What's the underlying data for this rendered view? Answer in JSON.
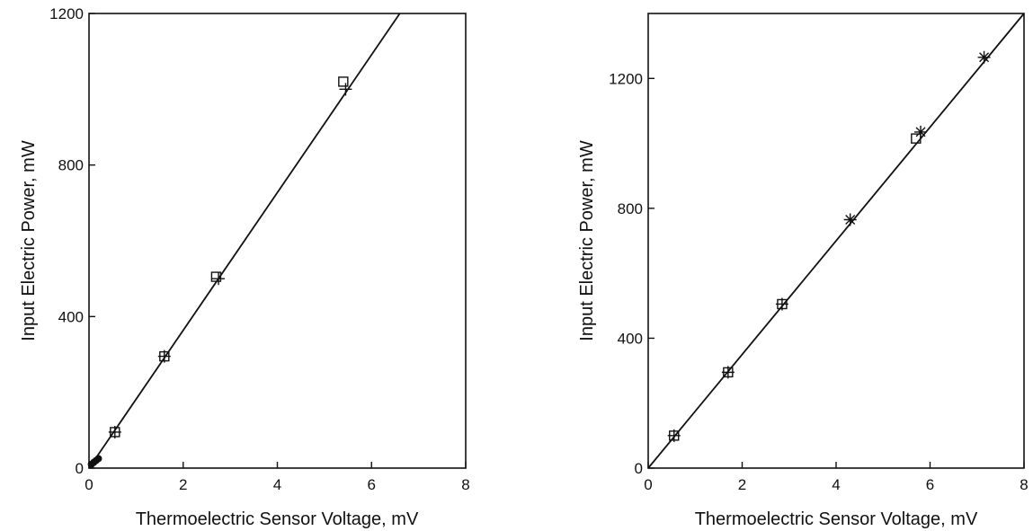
{
  "chart_data": [
    {
      "type": "scatter",
      "xlabel": "Thermoelectric Sensor Voltage, mV",
      "ylabel": "Input Electric Power, mW",
      "xlim": [
        0,
        8
      ],
      "ylim": [
        0,
        1200
      ],
      "xticks": [
        "0",
        "2",
        "4",
        "6",
        "8"
      ],
      "yticks": [
        "0",
        "400",
        "800",
        "1200"
      ],
      "fit_line": {
        "x": [
          0,
          6.6
        ],
        "y": [
          0,
          1200
        ]
      },
      "series": [
        {
          "marker": "square",
          "x": [
            0.55,
            1.6,
            2.7,
            5.4
          ],
          "y": [
            95,
            295,
            505,
            1020
          ]
        },
        {
          "marker": "plus",
          "x": [
            0.55,
            1.6,
            2.75,
            5.45
          ],
          "y": [
            95,
            295,
            500,
            1000
          ]
        },
        {
          "marker": "filled-circle",
          "x": [
            0.05,
            0.1,
            0.15,
            0.2
          ],
          "y": [
            10,
            15,
            20,
            25
          ]
        }
      ]
    },
    {
      "type": "scatter",
      "xlabel": "Thermoelectric Sensor Voltage, mV",
      "ylabel": "Input Electric Power, mW",
      "xlim": [
        0,
        8
      ],
      "ylim": [
        0,
        1400
      ],
      "xticks": [
        "0",
        "2",
        "4",
        "6",
        "8"
      ],
      "yticks": [
        "0",
        "400",
        "800",
        "1200"
      ],
      "fit_line": {
        "x": [
          0,
          8
        ],
        "y": [
          0,
          1400
        ]
      },
      "series": [
        {
          "marker": "square",
          "x": [
            0.55,
            1.7,
            2.85,
            5.7
          ],
          "y": [
            100,
            295,
            505,
            1015
          ]
        },
        {
          "marker": "plus",
          "x": [
            0.55,
            1.7,
            2.85
          ],
          "y": [
            100,
            295,
            505
          ]
        },
        {
          "marker": "asterisk",
          "x": [
            4.3,
            5.8,
            7.15
          ],
          "y": [
            765,
            1035,
            1265
          ]
        }
      ]
    }
  ]
}
